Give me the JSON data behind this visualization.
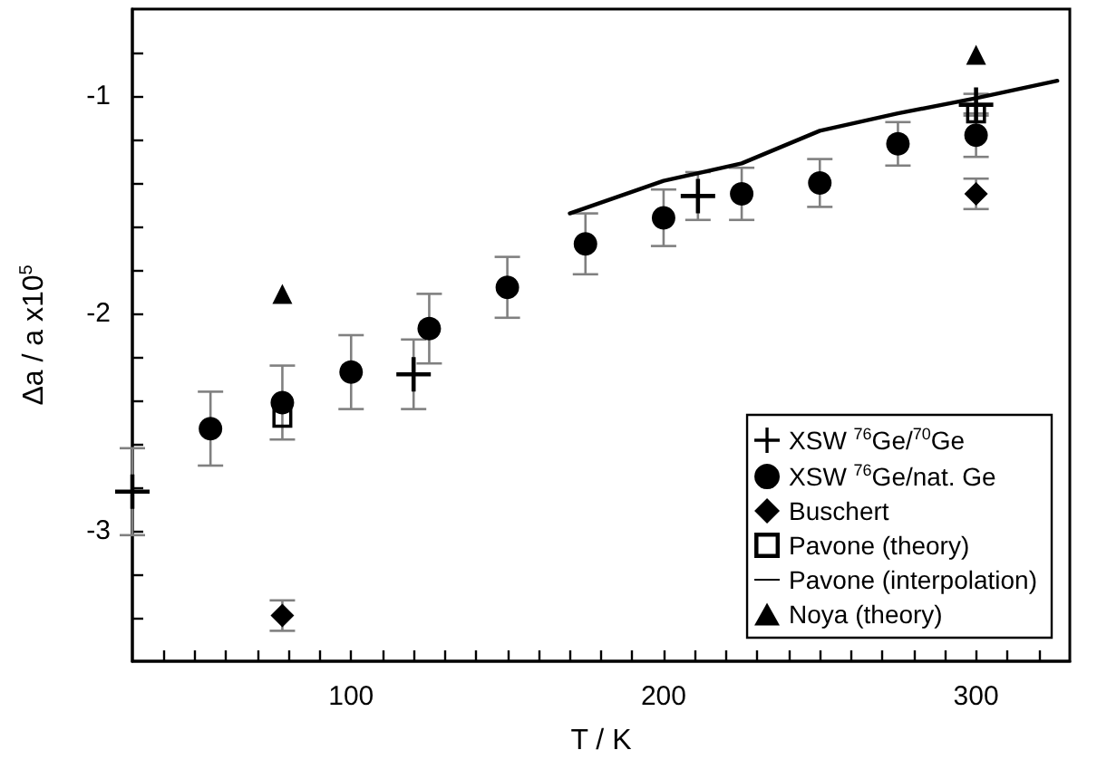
{
  "chart_data": {
    "type": "scatter",
    "xlabel": "T / K",
    "ylabel": "Δa / a x10$^{5}$",
    "xlim": [
      30,
      330
    ],
    "ylim": [
      -3.6,
      -0.6
    ],
    "xticks": [
      {
        "value": 40,
        "label": null
      },
      {
        "value": 50,
        "label": null
      },
      {
        "value": 60,
        "label": null
      },
      {
        "value": 70,
        "label": null
      },
      {
        "value": 80,
        "label": null
      },
      {
        "value": 90,
        "label": null
      },
      100,
      {
        "value": 110,
        "label": null
      },
      {
        "value": 120,
        "label": null
      },
      {
        "value": 130,
        "label": null
      },
      {
        "value": 140,
        "label": null
      },
      {
        "value": 150,
        "label": null
      },
      {
        "value": 160,
        "label": null
      },
      {
        "value": 170,
        "label": null
      },
      {
        "value": 180,
        "label": null
      },
      {
        "value": 190,
        "label": null
      },
      200,
      {
        "value": 210,
        "label": null
      },
      {
        "value": 220,
        "label": null
      },
      {
        "value": 230,
        "label": null
      },
      {
        "value": 240,
        "label": null
      },
      {
        "value": 250,
        "label": null
      },
      {
        "value": 260,
        "label": null
      },
      {
        "value": 270,
        "label": null
      },
      {
        "value": 280,
        "label": null
      },
      {
        "value": 290,
        "label": null
      },
      300,
      {
        "value": 310,
        "label": null
      },
      {
        "value": 320,
        "label": null
      }
    ],
    "yticks": [
      {
        "value": -3.4,
        "label": null
      },
      {
        "value": -3.2,
        "label": null
      },
      -3,
      {
        "value": -2.8,
        "label": null
      },
      {
        "value": -2.6,
        "label": null
      },
      {
        "value": -2.4,
        "label": null
      },
      {
        "value": -2.2,
        "label": null
      },
      -2,
      {
        "value": -1.8,
        "label": null
      },
      {
        "value": -1.6,
        "label": null
      },
      {
        "value": -1.4,
        "label": null
      },
      {
        "value": -1.2,
        "label": null
      },
      -1,
      {
        "value": -0.8,
        "label": null
      }
    ],
    "grid": false,
    "legend": "bottom right",
    "series": [
      {
        "name": "XSW $^{76}$Ge/$^{70}$Ge",
        "marker": "cross",
        "color": "#000000",
        "x": [
          30,
          120,
          211,
          300
        ],
        "values": [
          -2.82,
          -2.28,
          -1.46,
          -1.04
        ],
        "errors": [
          0.2,
          0.16,
          0.11,
          0.05
        ]
      },
      {
        "name": "XSW $^{76}$Ge/nat. Ge",
        "marker": "circle",
        "color": "#000000",
        "x": [
          55,
          78,
          100,
          125,
          150,
          175,
          200,
          225,
          250,
          275,
          300
        ],
        "values": [
          -2.53,
          -2.41,
          -2.27,
          -2.07,
          -1.88,
          -1.68,
          -1.56,
          -1.45,
          -1.4,
          -1.22,
          -1.18
        ],
        "errors": [
          0.17,
          0.17,
          0.17,
          0.16,
          0.14,
          0.14,
          0.13,
          0.12,
          0.11,
          0.1,
          0.1
        ]
      },
      {
        "name": "Buschert",
        "marker": "diamond",
        "color": "#000000",
        "x": [
          78,
          300
        ],
        "values": [
          -3.39,
          -1.45
        ],
        "errors": [
          0.07,
          0.07
        ]
      },
      {
        "name": "Pavone (theory)",
        "marker": "square",
        "color": "#000000",
        "x": [
          78,
          300
        ],
        "values": [
          -2.48,
          -1.08
        ]
      },
      {
        "name": "Pavone (interpolation)",
        "type": "line",
        "marker": "none",
        "line_style": "solid",
        "color": "#000000",
        "x": [
          170,
          200,
          225,
          250,
          275,
          300,
          326
        ],
        "values": [
          -1.54,
          -1.39,
          -1.31,
          -1.16,
          -1.08,
          -1.01,
          -0.93
        ]
      },
      {
        "name": "Noya (theory)",
        "marker": "triangle",
        "color": "#000000",
        "x": [
          78,
          300
        ],
        "values": [
          -1.91,
          -0.81
        ]
      }
    ]
  }
}
